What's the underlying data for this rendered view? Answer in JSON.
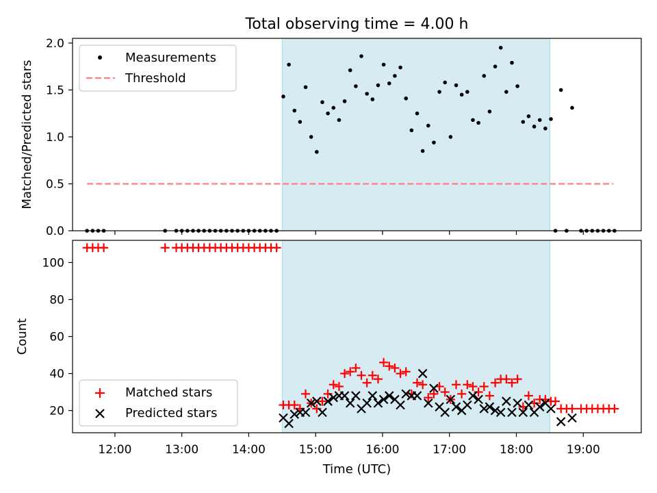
{
  "chart_data": [
    {
      "type": "scatter",
      "title": "Total observing time = 4.00 h",
      "xlabel": "",
      "ylabel": "Matched/Predicted stars",
      "xlim": [
        "11:22",
        "19:52"
      ],
      "ylim": [
        0,
        2.05
      ],
      "yticks": [
        "0.0",
        "0.5",
        "1.0",
        "1.5",
        "2.0"
      ],
      "grid": false,
      "legend_position": "top-left",
      "shaded_interval": {
        "start": "14:30",
        "end": "18:30",
        "color": "#add8e6"
      },
      "threshold": {
        "name": "Threshold",
        "y": 0.5,
        "x_start": "11:35",
        "x_end": "19:27",
        "color": "#ff7f7f"
      },
      "series": [
        {
          "name": "Measurements",
          "color": "#000000",
          "marker": "dot",
          "points": [
            [
              "11:35",
              0
            ],
            [
              "11:40",
              0
            ],
            [
              "11:45",
              0
            ],
            [
              "11:50",
              0
            ],
            [
              "12:45",
              0
            ],
            [
              "12:55",
              0
            ],
            [
              "13:00",
              0
            ],
            [
              "13:05",
              0
            ],
            [
              "13:10",
              0
            ],
            [
              "13:15",
              0
            ],
            [
              "13:20",
              0
            ],
            [
              "13:25",
              0
            ],
            [
              "13:30",
              0
            ],
            [
              "13:35",
              0
            ],
            [
              "13:40",
              0
            ],
            [
              "13:45",
              0
            ],
            [
              "13:50",
              0
            ],
            [
              "13:55",
              0
            ],
            [
              "14:00",
              0
            ],
            [
              "14:05",
              0
            ],
            [
              "14:10",
              0
            ],
            [
              "14:15",
              0
            ],
            [
              "14:20",
              0
            ],
            [
              "14:25",
              0
            ],
            [
              "14:31",
              1.43
            ],
            [
              "14:36",
              1.77
            ],
            [
              "14:41",
              1.28
            ],
            [
              "14:46",
              1.16
            ],
            [
              "14:51",
              1.53
            ],
            [
              "14:56",
              1.0
            ],
            [
              "15:01",
              0.84
            ],
            [
              "15:06",
              1.37
            ],
            [
              "15:11",
              1.25
            ],
            [
              "15:16",
              1.31
            ],
            [
              "15:21",
              1.18
            ],
            [
              "15:26",
              1.38
            ],
            [
              "15:31",
              1.71
            ],
            [
              "15:36",
              1.54
            ],
            [
              "15:41",
              1.86
            ],
            [
              "15:46",
              1.46
            ],
            [
              "15:51",
              1.4
            ],
            [
              "15:56",
              1.55
            ],
            [
              "16:01",
              1.77
            ],
            [
              "16:06",
              1.57
            ],
            [
              "16:11",
              1.65
            ],
            [
              "16:16",
              1.74
            ],
            [
              "16:21",
              1.41
            ],
            [
              "16:26",
              1.07
            ],
            [
              "16:31",
              1.25
            ],
            [
              "16:36",
              0.85
            ],
            [
              "16:41",
              1.12
            ],
            [
              "16:46",
              0.94
            ],
            [
              "16:51",
              1.48
            ],
            [
              "16:56",
              1.58
            ],
            [
              "17:01",
              1.0
            ],
            [
              "17:06",
              1.55
            ],
            [
              "17:11",
              1.45
            ],
            [
              "17:16",
              1.48
            ],
            [
              "17:21",
              1.18
            ],
            [
              "17:26",
              1.15
            ],
            [
              "17:31",
              1.65
            ],
            [
              "17:36",
              1.27
            ],
            [
              "17:41",
              1.75
            ],
            [
              "17:46",
              1.95
            ],
            [
              "17:51",
              1.48
            ],
            [
              "17:56",
              1.79
            ],
            [
              "18:01",
              1.54
            ],
            [
              "18:06",
              1.16
            ],
            [
              "18:11",
              1.22
            ],
            [
              "18:16",
              1.11
            ],
            [
              "18:21",
              1.18
            ],
            [
              "18:26",
              1.09
            ],
            [
              "18:31",
              1.19
            ],
            [
              "18:35",
              0
            ],
            [
              "18:40",
              1.5
            ],
            [
              "18:45",
              0
            ],
            [
              "18:50",
              1.31
            ],
            [
              "18:58",
              0
            ],
            [
              "19:03",
              0
            ],
            [
              "19:08",
              0
            ],
            [
              "19:13",
              0
            ],
            [
              "19:18",
              0
            ],
            [
              "19:23",
              0
            ],
            [
              "19:28",
              0
            ]
          ]
        }
      ]
    },
    {
      "type": "scatter",
      "title": "",
      "xlabel": "Time (UTC)",
      "ylabel": "Count",
      "xlim": [
        "11:22",
        "19:52"
      ],
      "ylim": [
        8,
        112
      ],
      "yticks": [
        "20",
        "40",
        "60",
        "80",
        "100"
      ],
      "xticks": [
        "12:00",
        "13:00",
        "14:00",
        "15:00",
        "16:00",
        "17:00",
        "18:00",
        "19:00"
      ],
      "grid": false,
      "legend_position": "bottom-left",
      "shaded_interval": {
        "start": "14:30",
        "end": "18:30",
        "color": "#add8e6"
      },
      "series": [
        {
          "name": "Matched stars",
          "color": "#ff0000",
          "marker": "plus",
          "points": [
            [
              "11:35",
              108
            ],
            [
              "11:40",
              108
            ],
            [
              "11:45",
              108
            ],
            [
              "11:50",
              108
            ],
            [
              "12:45",
              108
            ],
            [
              "12:55",
              108
            ],
            [
              "13:00",
              108
            ],
            [
              "13:05",
              108
            ],
            [
              "13:10",
              108
            ],
            [
              "13:15",
              108
            ],
            [
              "13:20",
              108
            ],
            [
              "13:25",
              108
            ],
            [
              "13:30",
              108
            ],
            [
              "13:35",
              108
            ],
            [
              "13:40",
              108
            ],
            [
              "13:45",
              108
            ],
            [
              "13:50",
              108
            ],
            [
              "13:55",
              108
            ],
            [
              "14:00",
              108
            ],
            [
              "14:05",
              108
            ],
            [
              "14:10",
              108
            ],
            [
              "14:15",
              108
            ],
            [
              "14:20",
              108
            ],
            [
              "14:25",
              108
            ],
            [
              "14:31",
              23
            ],
            [
              "14:36",
              23
            ],
            [
              "14:41",
              23
            ],
            [
              "14:46",
              21
            ],
            [
              "14:51",
              29
            ],
            [
              "14:56",
              24
            ],
            [
              "15:01",
              21
            ],
            [
              "15:06",
              25
            ],
            [
              "15:11",
              29
            ],
            [
              "15:16",
              34
            ],
            [
              "15:21",
              33
            ],
            [
              "15:26",
              40
            ],
            [
              "15:31",
              41
            ],
            [
              "15:36",
              43
            ],
            [
              "15:41",
              39
            ],
            [
              "15:46",
              35
            ],
            [
              "15:51",
              39
            ],
            [
              "15:56",
              37
            ],
            [
              "16:01",
              46
            ],
            [
              "16:06",
              44
            ],
            [
              "16:11",
              43
            ],
            [
              "16:16",
              40
            ],
            [
              "16:21",
              41
            ],
            [
              "16:26",
              29
            ],
            [
              "16:31",
              35
            ],
            [
              "16:36",
              34
            ],
            [
              "16:41",
              27
            ],
            [
              "16:46",
              29
            ],
            [
              "16:51",
              33
            ],
            [
              "16:56",
              30
            ],
            [
              "17:01",
              26
            ],
            [
              "17:06",
              34
            ],
            [
              "17:11",
              29
            ],
            [
              "17:16",
              34
            ],
            [
              "17:21",
              33
            ],
            [
              "17:26",
              30
            ],
            [
              "17:31",
              33
            ],
            [
              "17:36",
              28
            ],
            [
              "17:41",
              35
            ],
            [
              "17:46",
              37
            ],
            [
              "17:51",
              37
            ],
            [
              "17:56",
              35
            ],
            [
              "18:01",
              37
            ],
            [
              "18:06",
              22
            ],
            [
              "18:11",
              28
            ],
            [
              "18:16",
              24
            ],
            [
              "18:21",
              26
            ],
            [
              "18:26",
              26
            ],
            [
              "18:31",
              25
            ],
            [
              "18:35",
              25
            ],
            [
              "18:40",
              21
            ],
            [
              "18:45",
              21
            ],
            [
              "18:50",
              21
            ],
            [
              "18:58",
              21
            ],
            [
              "19:03",
              21
            ],
            [
              "19:08",
              21
            ],
            [
              "19:13",
              21
            ],
            [
              "19:18",
              21
            ],
            [
              "19:23",
              21
            ],
            [
              "19:28",
              21
            ]
          ]
        },
        {
          "name": "Predicted stars",
          "color": "#000000",
          "marker": "x",
          "points": [
            [
              "14:31",
              16
            ],
            [
              "14:36",
              13
            ],
            [
              "14:41",
              18
            ],
            [
              "14:46",
              19
            ],
            [
              "14:51",
              19
            ],
            [
              "14:56",
              24
            ],
            [
              "15:01",
              25
            ],
            [
              "15:06",
              19
            ],
            [
              "15:11",
              25
            ],
            [
              "15:16",
              27
            ],
            [
              "15:21",
              28
            ],
            [
              "15:26",
              28
            ],
            [
              "15:31",
              24
            ],
            [
              "15:36",
              28
            ],
            [
              "15:41",
              21
            ],
            [
              "15:46",
              24
            ],
            [
              "15:51",
              28
            ],
            [
              "15:56",
              24
            ],
            [
              "16:01",
              26
            ],
            [
              "16:06",
              28
            ],
            [
              "16:11",
              26
            ],
            [
              "16:16",
              23
            ],
            [
              "16:21",
              29
            ],
            [
              "16:26",
              28
            ],
            [
              "16:31",
              28
            ],
            [
              "16:36",
              40
            ],
            [
              "16:41",
              24
            ],
            [
              "16:46",
              32
            ],
            [
              "16:51",
              22
            ],
            [
              "16:56",
              19
            ],
            [
              "17:01",
              26
            ],
            [
              "17:06",
              22
            ],
            [
              "17:11",
              20
            ],
            [
              "17:16",
              23
            ],
            [
              "17:21",
              28
            ],
            [
              "17:26",
              26
            ],
            [
              "17:31",
              21
            ],
            [
              "17:36",
              22
            ],
            [
              "17:41",
              20
            ],
            [
              "17:46",
              19
            ],
            [
              "17:51",
              25
            ],
            [
              "17:56",
              19
            ],
            [
              "18:01",
              24
            ],
            [
              "18:06",
              19
            ],
            [
              "18:11",
              23
            ],
            [
              "18:16",
              19
            ],
            [
              "18:21",
              22
            ],
            [
              "18:26",
              24
            ],
            [
              "18:31",
              21
            ],
            [
              "18:40",
              14
            ],
            [
              "18:50",
              16
            ]
          ]
        }
      ]
    }
  ]
}
